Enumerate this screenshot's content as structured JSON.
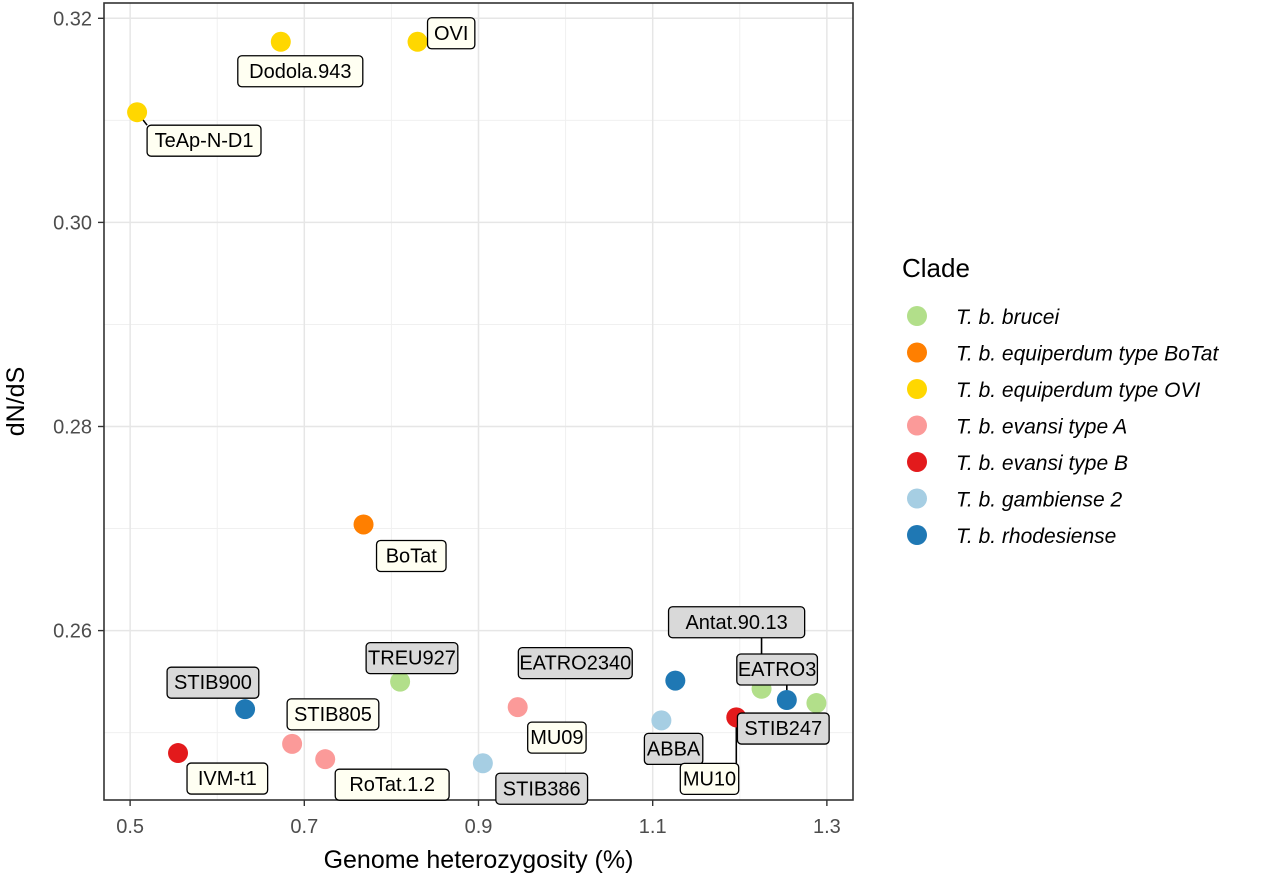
{
  "chart_data": {
    "type": "scatter",
    "xlabel": "Genome heterozygosity (%)",
    "ylabel": "dN/dS",
    "xlim": [
      0.47,
      1.33
    ],
    "ylim": [
      0.2434,
      0.3215
    ],
    "xticks": [
      0.5,
      0.7,
      0.9,
      1.1,
      1.3
    ],
    "xtick_labels": [
      "0.5",
      "0.7",
      "0.9",
      "1.1",
      "1.3"
    ],
    "yticks": [
      0.26,
      0.28,
      0.3,
      0.32
    ],
    "ytick_labels": [
      "0.26",
      "0.28",
      "0.30",
      "0.32"
    ],
    "grid": true,
    "legend_position": "right",
    "legend": {
      "title": "Clade",
      "entries": [
        {
          "key": "brucei",
          "label": "T. b. brucei",
          "color": "#b2df8a"
        },
        {
          "key": "botat",
          "label": "T. b. equiperdum type BoTat",
          "color": "#ff7f00"
        },
        {
          "key": "ovi",
          "label": "T. b. equiperdum type OVI",
          "color": "#ffd700"
        },
        {
          "key": "evansiA",
          "label": "T. b. evansi type A",
          "color": "#fb9a99"
        },
        {
          "key": "evansiB",
          "label": "T. b. evansi type B",
          "color": "#e31a1c"
        },
        {
          "key": "gamb2",
          "label": "T. b. gambiense 2",
          "color": "#a6cee3"
        },
        {
          "key": "rhod",
          "label": "T. b. rhodesiense",
          "color": "#1f78b4"
        }
      ]
    },
    "points": [
      {
        "label": "OVI",
        "clade": "ovi",
        "x": 0.83,
        "y": 0.3177,
        "label_fill": "#fffff2"
      },
      {
        "label": "Dodola.943",
        "clade": "ovi",
        "x": 0.673,
        "y": 0.3177,
        "label_fill": "#fffff2"
      },
      {
        "label": "TeAp-N-D1",
        "clade": "ovi",
        "x": 0.508,
        "y": 0.3108,
        "label_fill": "#fffff2"
      },
      {
        "label": "BoTat",
        "clade": "botat",
        "x": 0.768,
        "y": 0.2704,
        "label_fill": "#fffff2"
      },
      {
        "label": "TREU927",
        "clade": "brucei",
        "x": 0.81,
        "y": 0.255,
        "label_fill": "#d9d9d9"
      },
      {
        "label": "STIB900",
        "clade": "rhod",
        "x": 0.632,
        "y": 0.2523,
        "label_fill": "#d9d9d9"
      },
      {
        "label": "STIB805",
        "clade": "evansiA",
        "x": 0.686,
        "y": 0.2489,
        "label_fill": "#fffff2"
      },
      {
        "label": "IVM-t1",
        "clade": "evansiB",
        "x": 0.555,
        "y": 0.248,
        "label_fill": "#fffff2"
      },
      {
        "label": "RoTat.1.2",
        "clade": "evansiA",
        "x": 0.724,
        "y": 0.2474,
        "label_fill": "#fffff2"
      },
      {
        "label": "MU09",
        "clade": "evansiA",
        "x": 0.945,
        "y": 0.2525,
        "label_fill": "#fffff2"
      },
      {
        "label": "STIB386",
        "clade": "gamb2",
        "x": 0.905,
        "y": 0.247,
        "label_fill": "#d9d9d9"
      },
      {
        "label": "EATRO2340",
        "clade": "rhod",
        "x": 1.126,
        "y": 0.2551,
        "label_fill": "#d9d9d9"
      },
      {
        "label": "ABBA",
        "clade": "gamb2",
        "x": 1.11,
        "y": 0.2512,
        "label_fill": "#d9d9d9"
      },
      {
        "label": "Antat.90.13",
        "clade": "brucei",
        "x": 1.225,
        "y": 0.2543,
        "label_fill": "#d9d9d9"
      },
      {
        "label": "EATRO3",
        "clade": "rhod",
        "x": 1.254,
        "y": 0.2532,
        "label_fill": "#d9d9d9"
      },
      {
        "label": "STIB247",
        "clade": "brucei",
        "x": 1.288,
        "y": 0.2529,
        "label_fill": "#d9d9d9"
      },
      {
        "label": "MU10",
        "clade": "evansiB",
        "x": 1.196,
        "y": 0.2515,
        "label_fill": "#fffff2"
      }
    ]
  }
}
